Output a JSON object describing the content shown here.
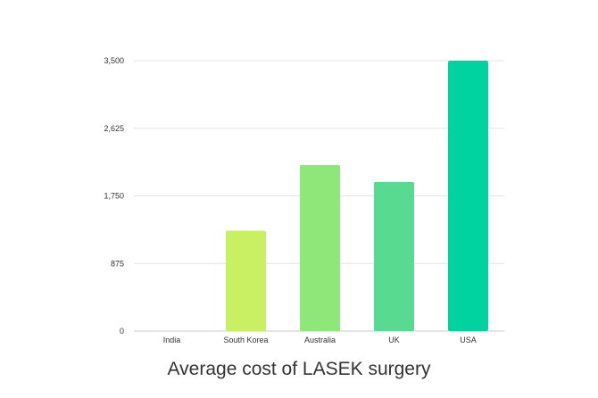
{
  "chart_data": {
    "type": "bar",
    "title": "Average cost of LASEK surgery",
    "categories": [
      "India",
      "South Korea",
      "Australia",
      "UK",
      "USA"
    ],
    "values": [
      0,
      1300,
      2150,
      1930,
      3500
    ],
    "colors": [
      "#d7f25e",
      "#c8f062",
      "#8fe77a",
      "#58db91",
      "#00d3a0"
    ],
    "yticks": [
      0,
      875,
      1750,
      2625,
      3500
    ],
    "ytick_labels": [
      "0",
      "875",
      "1,750",
      "2,625",
      "3,500"
    ],
    "ylim": [
      0,
      3500
    ],
    "grid": true,
    "legend": "none"
  }
}
